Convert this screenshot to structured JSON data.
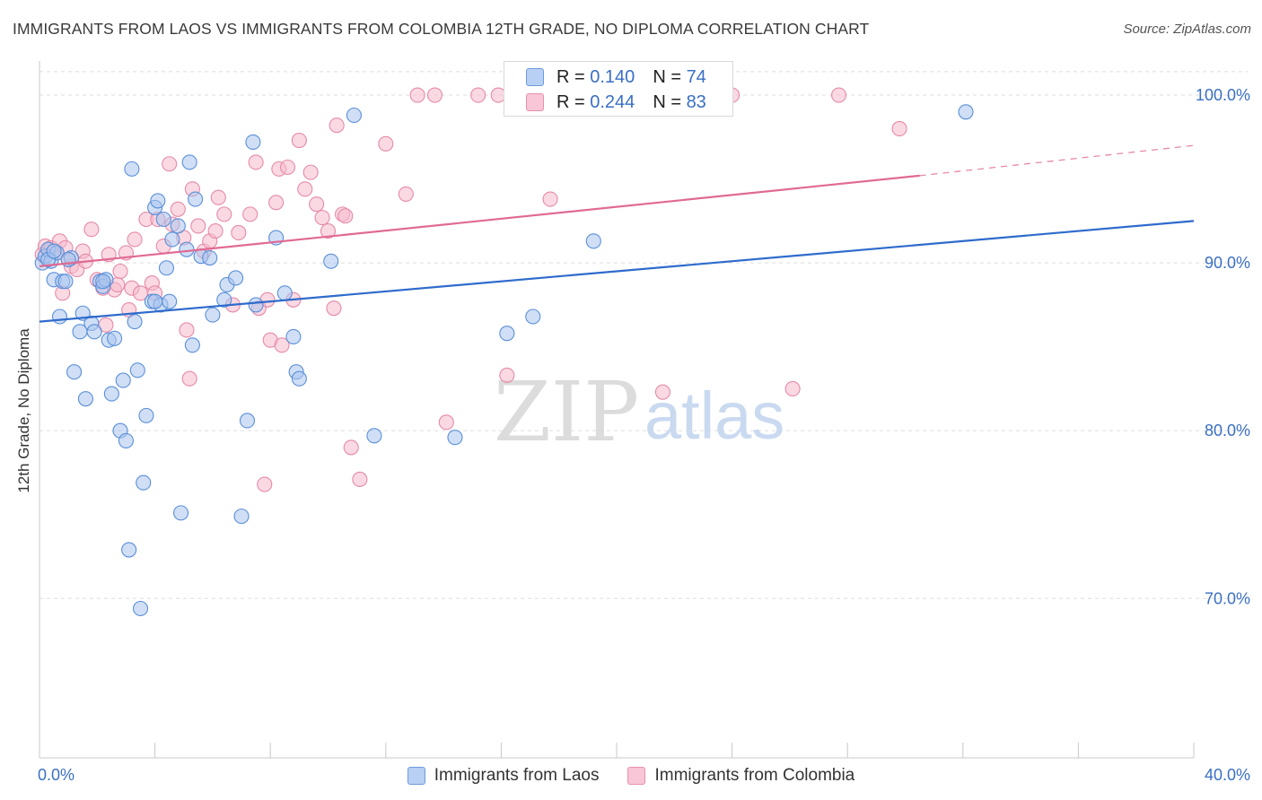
{
  "title": "IMMIGRANTS FROM LAOS VS IMMIGRANTS FROM COLOMBIA 12TH GRADE, NO DIPLOMA CORRELATION CHART",
  "source": "Source: ZipAtlas.com",
  "watermark": {
    "zip": "ZIP",
    "atlas": "atlas"
  },
  "colors": {
    "laos_fill": "#a9c4ef",
    "laos_stroke": "#5a8fd8",
    "laos_line": "#2f6bcc",
    "colombia_fill": "#f6b9cc",
    "colombia_stroke": "#e58aa8",
    "colombia_line": "#e06a94",
    "tick_label": "#3a6fc4",
    "grid": "#dddddd"
  },
  "stats": {
    "laos": {
      "r_label": "R =",
      "r_value": "0.140",
      "n_label": "N =",
      "n_value": "74"
    },
    "colombia": {
      "r_label": "R =",
      "r_value": "0.244",
      "n_label": "N =",
      "n_value": "83"
    }
  },
  "legend": {
    "laos": "Immigrants from Laos",
    "colombia": "Immigrants from Colombia"
  },
  "chart_data": {
    "type": "scatter",
    "title": "IMMIGRANTS FROM LAOS VS IMMIGRANTS FROM COLOMBIA 12TH GRADE, NO DIPLOMA CORRELATION CHART",
    "xlabel": "",
    "ylabel": "12th Grade, No Diploma",
    "xlim": [
      0,
      40
    ],
    "ylim": [
      60.5,
      101.5
    ],
    "x_tick_labels": [
      "0.0%",
      "40.0%"
    ],
    "y_ticks": [
      70,
      80,
      90,
      100
    ],
    "y_tick_labels": [
      "70.0%",
      "80.0%",
      "90.0%",
      "100.0%"
    ],
    "grid": true,
    "legend_position": "bottom",
    "series": [
      {
        "name": "Immigrants from Laos",
        "trend": {
          "x": [
            0,
            40
          ],
          "y": [
            86.5,
            92.5
          ]
        },
        "points": [
          [
            0.1,
            90.0
          ],
          [
            0.2,
            90.4
          ],
          [
            0.3,
            90.8
          ],
          [
            0.4,
            90.1
          ],
          [
            0.5,
            89.0
          ],
          [
            0.6,
            90.6
          ],
          [
            0.7,
            86.8
          ],
          [
            0.8,
            88.9
          ],
          [
            0.9,
            88.9
          ],
          [
            1.1,
            90.3
          ],
          [
            1.2,
            83.5
          ],
          [
            1.4,
            85.9
          ],
          [
            1.5,
            87.0
          ],
          [
            1.6,
            81.9
          ],
          [
            1.8,
            86.4
          ],
          [
            1.9,
            85.9
          ],
          [
            2.1,
            88.9
          ],
          [
            2.2,
            88.6
          ],
          [
            2.3,
            89.0
          ],
          [
            2.4,
            85.4
          ],
          [
            2.5,
            82.2
          ],
          [
            2.6,
            85.5
          ],
          [
            2.8,
            80.0
          ],
          [
            2.9,
            83.0
          ],
          [
            3.0,
            79.4
          ],
          [
            3.1,
            72.9
          ],
          [
            3.2,
            95.6
          ],
          [
            3.3,
            86.5
          ],
          [
            3.4,
            83.6
          ],
          [
            3.5,
            69.4
          ],
          [
            3.6,
            76.9
          ],
          [
            3.7,
            80.9
          ],
          [
            3.9,
            87.7
          ],
          [
            4.0,
            93.3
          ],
          [
            4.1,
            93.7
          ],
          [
            4.2,
            87.5
          ],
          [
            4.3,
            92.6
          ],
          [
            4.4,
            89.7
          ],
          [
            4.5,
            87.7
          ],
          [
            4.6,
            91.4
          ],
          [
            4.8,
            92.2
          ],
          [
            4.9,
            75.1
          ],
          [
            5.1,
            90.8
          ],
          [
            5.2,
            96.0
          ],
          [
            5.3,
            85.1
          ],
          [
            5.4,
            93.8
          ],
          [
            5.6,
            90.4
          ],
          [
            5.9,
            90.3
          ],
          [
            6.0,
            86.9
          ],
          [
            6.4,
            87.8
          ],
          [
            6.5,
            88.7
          ],
          [
            6.8,
            89.1
          ],
          [
            7.0,
            74.9
          ],
          [
            7.2,
            80.6
          ],
          [
            7.4,
            97.2
          ],
          [
            7.5,
            87.5
          ],
          [
            8.2,
            91.5
          ],
          [
            8.5,
            88.2
          ],
          [
            8.8,
            85.6
          ],
          [
            8.9,
            83.5
          ],
          [
            9.0,
            83.1
          ],
          [
            10.1,
            90.1
          ],
          [
            10.9,
            98.8
          ],
          [
            11.6,
            79.7
          ],
          [
            14.4,
            79.6
          ],
          [
            16.2,
            85.8
          ],
          [
            17.1,
            86.8
          ],
          [
            19.2,
            91.3
          ],
          [
            32.1,
            99.0
          ],
          [
            0.3,
            90.2
          ],
          [
            0.5,
            90.7
          ],
          [
            1.0,
            90.2
          ],
          [
            2.2,
            88.9
          ],
          [
            4.0,
            87.7
          ]
        ]
      },
      {
        "name": "Immigrants from Colombia",
        "trend": {
          "x": [
            0,
            30.5
          ],
          "y": [
            89.8,
            95.2
          ]
        },
        "trend_dashed": {
          "x": [
            30.5,
            40
          ],
          "y": [
            95.2,
            97.0
          ]
        },
        "points": [
          [
            0.1,
            90.5
          ],
          [
            0.2,
            91.0
          ],
          [
            0.4,
            90.9
          ],
          [
            0.6,
            90.6
          ],
          [
            0.7,
            91.3
          ],
          [
            0.8,
            88.2
          ],
          [
            0.9,
            90.9
          ],
          [
            1.0,
            90.2
          ],
          [
            1.1,
            89.8
          ],
          [
            1.3,
            89.6
          ],
          [
            1.5,
            90.7
          ],
          [
            1.6,
            90.1
          ],
          [
            1.8,
            92.0
          ],
          [
            2.0,
            89.0
          ],
          [
            2.2,
            88.5
          ],
          [
            2.3,
            86.3
          ],
          [
            2.4,
            90.5
          ],
          [
            2.6,
            88.4
          ],
          [
            2.7,
            88.7
          ],
          [
            2.8,
            89.5
          ],
          [
            3.0,
            90.6
          ],
          [
            3.1,
            87.2
          ],
          [
            3.2,
            88.5
          ],
          [
            3.3,
            91.4
          ],
          [
            3.5,
            88.2
          ],
          [
            3.7,
            92.6
          ],
          [
            3.9,
            88.8
          ],
          [
            4.0,
            88.2
          ],
          [
            4.1,
            92.6
          ],
          [
            4.3,
            91.0
          ],
          [
            4.5,
            95.9
          ],
          [
            4.6,
            92.3
          ],
          [
            4.8,
            93.2
          ],
          [
            5.0,
            91.5
          ],
          [
            5.1,
            86.0
          ],
          [
            5.2,
            83.1
          ],
          [
            5.3,
            94.4
          ],
          [
            5.5,
            92.2
          ],
          [
            5.7,
            90.7
          ],
          [
            5.9,
            91.3
          ],
          [
            6.1,
            91.9
          ],
          [
            6.2,
            93.9
          ],
          [
            6.4,
            92.9
          ],
          [
            6.7,
            87.5
          ],
          [
            6.9,
            91.8
          ],
          [
            7.3,
            92.9
          ],
          [
            7.5,
            96.0
          ],
          [
            7.6,
            87.3
          ],
          [
            7.8,
            76.8
          ],
          [
            7.9,
            87.8
          ],
          [
            8.0,
            85.4
          ],
          [
            8.2,
            93.6
          ],
          [
            8.3,
            95.6
          ],
          [
            8.4,
            85.1
          ],
          [
            8.6,
            95.7
          ],
          [
            8.8,
            87.8
          ],
          [
            9.0,
            97.3
          ],
          [
            9.2,
            94.4
          ],
          [
            9.4,
            95.4
          ],
          [
            9.6,
            93.5
          ],
          [
            9.8,
            92.7
          ],
          [
            10.0,
            91.9
          ],
          [
            10.2,
            87.3
          ],
          [
            10.3,
            98.2
          ],
          [
            10.5,
            92.9
          ],
          [
            10.6,
            92.8
          ],
          [
            10.8,
            79.0
          ],
          [
            11.1,
            77.1
          ],
          [
            12.0,
            97.1
          ],
          [
            12.7,
            94.1
          ],
          [
            13.1,
            100.0
          ],
          [
            13.7,
            100.0
          ],
          [
            14.1,
            80.5
          ],
          [
            15.2,
            100.0
          ],
          [
            15.9,
            100.0
          ],
          [
            16.2,
            83.3
          ],
          [
            17.7,
            93.8
          ],
          [
            20.2,
            100.0
          ],
          [
            21.6,
            82.3
          ],
          [
            24.0,
            100.0
          ],
          [
            26.1,
            82.5
          ],
          [
            27.7,
            100.0
          ],
          [
            29.8,
            98.0
          ]
        ]
      }
    ]
  }
}
